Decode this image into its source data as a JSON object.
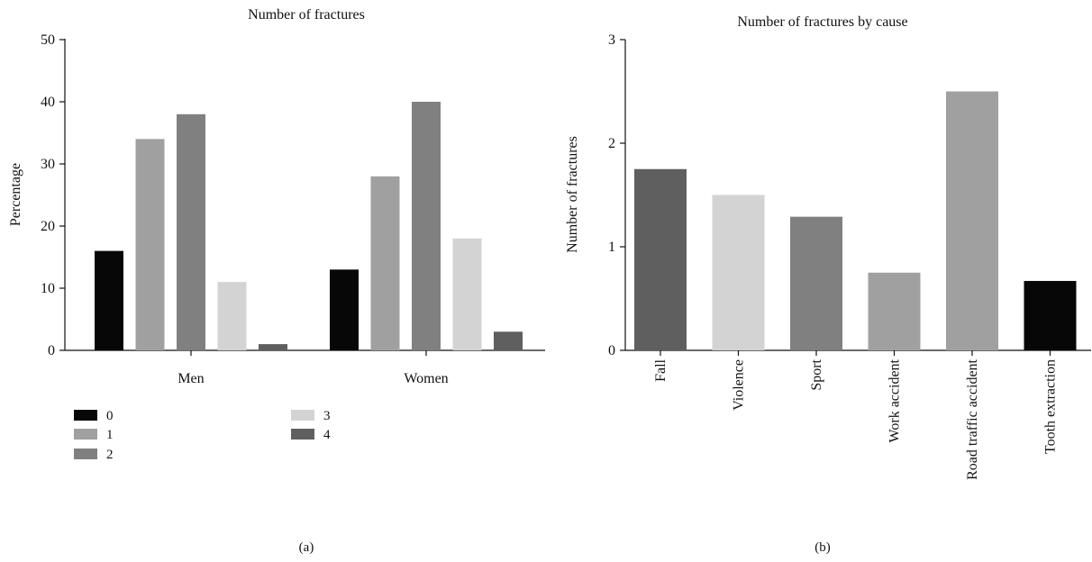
{
  "panels": {
    "a": {
      "label": "(a)"
    },
    "b": {
      "label": "(b)"
    }
  },
  "chart_data": [
    {
      "type": "bar",
      "title": "Number of fractures",
      "ylabel": "Percentage",
      "xlabel": "",
      "ylim": [
        0,
        50
      ],
      "yticks": [
        0,
        10,
        20,
        30,
        40,
        50
      ],
      "categories": [
        "Men",
        "Women"
      ],
      "legend_position": "bottom-left",
      "series": [
        {
          "name": "0",
          "values": [
            16,
            13
          ],
          "color": "#070707"
        },
        {
          "name": "1",
          "values": [
            34,
            28
          ],
          "color": "#a0a0a0"
        },
        {
          "name": "2",
          "values": [
            38,
            40
          ],
          "color": "#808080"
        },
        {
          "name": "3",
          "values": [
            11,
            18
          ],
          "color": "#d3d3d3"
        },
        {
          "name": "4",
          "values": [
            1,
            3
          ],
          "color": "#5f5f5f"
        }
      ]
    },
    {
      "type": "bar",
      "title": "Number of fractures by cause",
      "ylabel": "Number of fractures",
      "xlabel": "",
      "ylim": [
        0,
        3
      ],
      "yticks": [
        0,
        1,
        2,
        3
      ],
      "categories": [
        "Fall",
        "Violence",
        "Sport",
        "Work accident",
        "Road traffic accident",
        "Tooth extraction"
      ],
      "values": [
        1.75,
        1.5,
        1.29,
        0.75,
        2.5,
        0.67
      ],
      "colors": [
        "#5f5f5f",
        "#d3d3d3",
        "#808080",
        "#a0a0a0",
        "#a0a0a0",
        "#070707"
      ]
    }
  ]
}
